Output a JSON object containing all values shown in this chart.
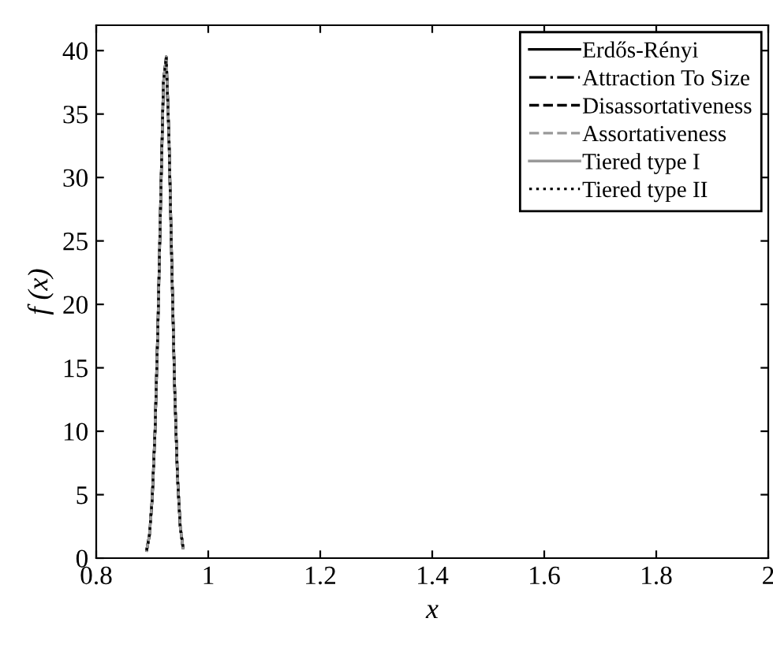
{
  "chart_data": {
    "type": "line",
    "xlabel": "x",
    "ylabel": "f (x)",
    "x": [
      0.89,
      0.895,
      0.9,
      0.905,
      0.91,
      0.915,
      0.92,
      0.925,
      0.93,
      0.935,
      0.94,
      0.945,
      0.95,
      0.955
    ],
    "series": [
      {
        "name": "Erdős-Rényi",
        "color": "#000000",
        "line_style": "solid",
        "values": [
          0.6,
          1.8,
          4.7,
          10,
          18,
          28,
          37.5,
          39.5,
          33,
          23,
          13.5,
          6.5,
          2.5,
          0.8
        ]
      },
      {
        "name": "Attraction To Size",
        "color": "#000000",
        "line_style": "dashdot",
        "values": [
          0.6,
          1.8,
          4.7,
          10,
          18,
          28,
          37.5,
          39.5,
          33,
          23,
          13.5,
          6.5,
          2.5,
          0.8
        ]
      },
      {
        "name": "Disassortativeness",
        "color": "#000000",
        "line_style": "dashed",
        "values": [
          0.6,
          1.8,
          4.7,
          10,
          18,
          28,
          37.5,
          39.5,
          33,
          23,
          13.5,
          6.5,
          2.5,
          0.8
        ]
      },
      {
        "name": "Assortativeness",
        "color": "#999999",
        "line_style": "dashed",
        "values": [
          0.6,
          1.8,
          4.7,
          10,
          18,
          28,
          37.5,
          39.5,
          33,
          23,
          13.5,
          6.5,
          2.5,
          0.8
        ]
      },
      {
        "name": "Tiered type I",
        "color": "#999999",
        "line_style": "solid",
        "values": [
          0.6,
          1.8,
          4.7,
          10,
          18,
          28,
          37.5,
          39.5,
          33,
          23,
          13.5,
          6.5,
          2.5,
          0.8
        ]
      },
      {
        "name": "Tiered type II",
        "color": "#000000",
        "line_style": "dotted",
        "values": [
          0.6,
          1.8,
          4.7,
          10,
          18,
          28,
          37.5,
          39.5,
          33,
          23,
          13.5,
          6.5,
          2.5,
          0.8
        ]
      }
    ],
    "xlim": [
      0.8,
      2
    ],
    "xticks": [
      0.8,
      1,
      1.2,
      1.4,
      1.6,
      1.8,
      2
    ],
    "ylim": [
      0,
      42
    ],
    "yticks": [
      0,
      5,
      10,
      15,
      20,
      25,
      30,
      35,
      40
    ],
    "grid": false,
    "legend": "top right"
  }
}
